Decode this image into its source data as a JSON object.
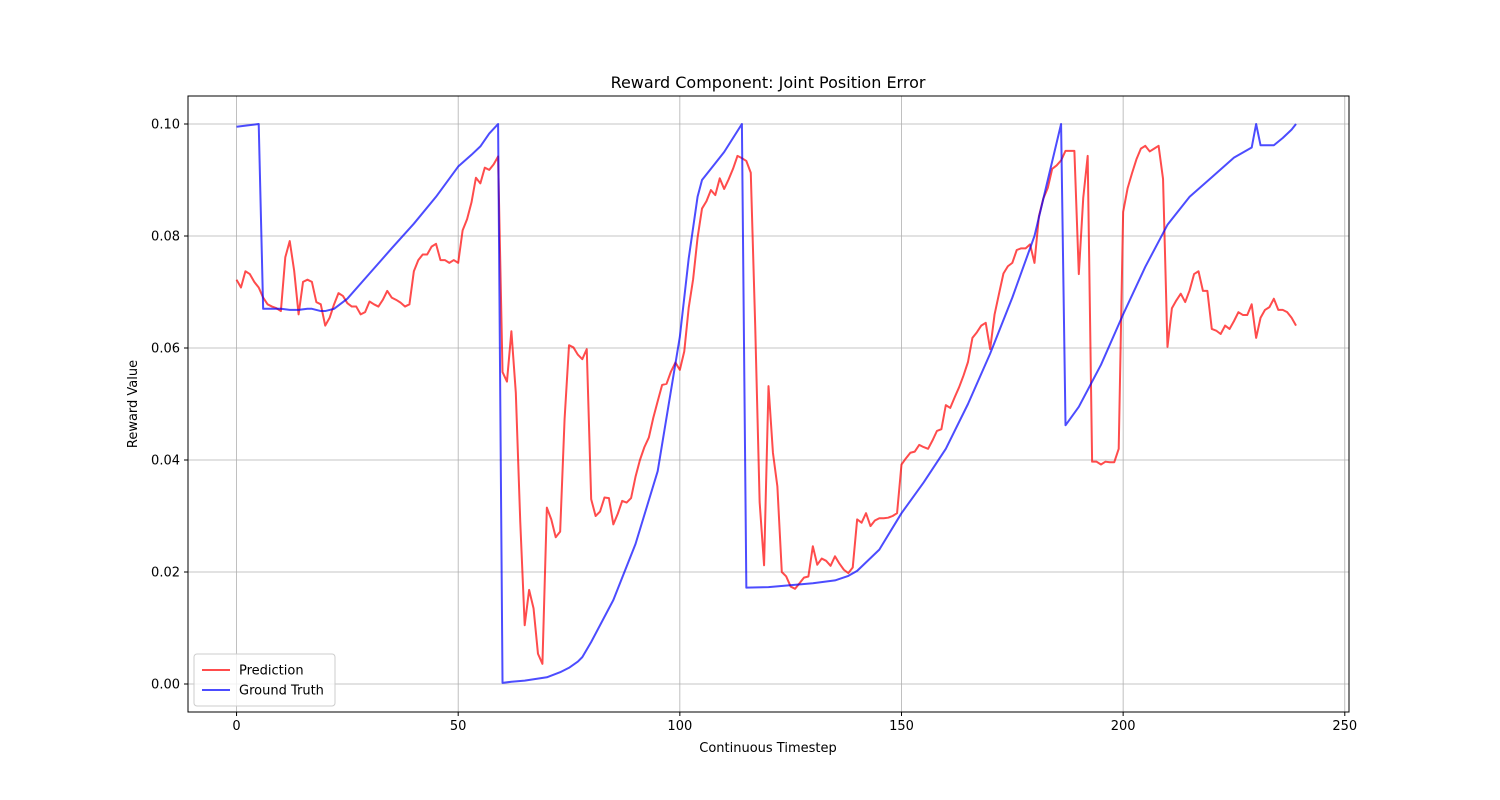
{
  "chart_data": {
    "type": "line",
    "title": "Reward Component: Joint Position Error",
    "xlabel": "Continuous Timestep",
    "ylabel": "Reward Value",
    "xlim": [
      -10.95,
      250.95
    ],
    "ylim": [
      -0.005,
      0.105
    ],
    "xticks": [
      0,
      50,
      100,
      150,
      200,
      250
    ],
    "yticks": [
      0.0,
      0.02,
      0.04,
      0.06,
      0.08,
      0.1
    ],
    "xtick_labels": [
      "0",
      "50",
      "100",
      "150",
      "200",
      "250"
    ],
    "ytick_labels": [
      "0.00",
      "0.02",
      "0.04",
      "0.06",
      "0.08",
      "0.10"
    ],
    "grid": true,
    "legend_position": "lower-left",
    "series": [
      {
        "name": "Prediction",
        "color": "#ff0000",
        "x": [
          0,
          1,
          2,
          3,
          4,
          5,
          6,
          7,
          8,
          9,
          10,
          11,
          12,
          13,
          14,
          15,
          16,
          17,
          18,
          19,
          20,
          21,
          22,
          23,
          24,
          25,
          26,
          27,
          28,
          29,
          30,
          31,
          32,
          33,
          34,
          35,
          36,
          37,
          38,
          39,
          40,
          41,
          42,
          43,
          44,
          45,
          46,
          47,
          48,
          49,
          50,
          51,
          52,
          53,
          54,
          55,
          56,
          57,
          58,
          59,
          60,
          61,
          62,
          63,
          64,
          65,
          66,
          67,
          68,
          69,
          70,
          71,
          72,
          73,
          74,
          75,
          76,
          77,
          78,
          79,
          80,
          81,
          82,
          83,
          84,
          85,
          86,
          87,
          88,
          89,
          90,
          91,
          92,
          93,
          94,
          95,
          96,
          97,
          98,
          99,
          100,
          101,
          102,
          103,
          104,
          105,
          106,
          107,
          108,
          109,
          110,
          111,
          112,
          113,
          114,
          115,
          116,
          117,
          118,
          119,
          120,
          121,
          122,
          123,
          124,
          125,
          126,
          127,
          128,
          129,
          130,
          131,
          132,
          133,
          134,
          135,
          136,
          137,
          138,
          139,
          140,
          141,
          142,
          143,
          144,
          145,
          146,
          147,
          148,
          149,
          150,
          151,
          152,
          153,
          154,
          155,
          156,
          157,
          158,
          159,
          160,
          161,
          162,
          163,
          164,
          165,
          166,
          167,
          168,
          169,
          170,
          171,
          172,
          173,
          174,
          175,
          176,
          177,
          178,
          179,
          180,
          181,
          182,
          183,
          184,
          185,
          186,
          187,
          188,
          189,
          190,
          191,
          192,
          193,
          194,
          195,
          196,
          197,
          198,
          199,
          200,
          201,
          202,
          203,
          204,
          205,
          206,
          207,
          208,
          209,
          210,
          211,
          212,
          213,
          214,
          215,
          216,
          217,
          218,
          219,
          220,
          221,
          222,
          223,
          224,
          225,
          226,
          227,
          228,
          229,
          230,
          231,
          232,
          233,
          234,
          235,
          236,
          237,
          238,
          239
        ],
        "y": [
          0.0722,
          0.0708,
          0.0737,
          0.0732,
          0.0718,
          0.0708,
          0.069,
          0.0678,
          0.0674,
          0.0671,
          0.0666,
          0.0762,
          0.0791,
          0.0738,
          0.066,
          0.0718,
          0.0722,
          0.0718,
          0.0682,
          0.0678,
          0.064,
          0.0654,
          0.0678,
          0.0698,
          0.0693,
          0.068,
          0.0674,
          0.0674,
          0.066,
          0.0664,
          0.0683,
          0.0678,
          0.0674,
          0.0686,
          0.0702,
          0.069,
          0.0686,
          0.0681,
          0.0674,
          0.0678,
          0.0737,
          0.0757,
          0.0767,
          0.0767,
          0.0781,
          0.0786,
          0.0757,
          0.0757,
          0.0752,
          0.0757,
          0.0752,
          0.081,
          0.083,
          0.086,
          0.0904,
          0.0894,
          0.0922,
          0.0918,
          0.0928,
          0.0942,
          0.0557,
          0.054,
          0.063,
          0.052,
          0.029,
          0.0105,
          0.0168,
          0.0135,
          0.0054,
          0.0036,
          0.0315,
          0.0294,
          0.0262,
          0.0272,
          0.0473,
          0.0605,
          0.0601,
          0.0588,
          0.058,
          0.0598,
          0.033,
          0.03,
          0.0308,
          0.0333,
          0.0332,
          0.0285,
          0.0304,
          0.0327,
          0.0324,
          0.0332,
          0.037,
          0.04,
          0.0423,
          0.044,
          0.0475,
          0.0505,
          0.0534,
          0.0536,
          0.0558,
          0.0574,
          0.0561,
          0.0594,
          0.0672,
          0.0723,
          0.0797,
          0.0849,
          0.0862,
          0.0882,
          0.0873,
          0.0903,
          0.0884,
          0.0901,
          0.092,
          0.0943,
          0.0939,
          0.0934,
          0.0913,
          0.064,
          0.0325,
          0.0212,
          0.0532,
          0.0413,
          0.0353,
          0.02,
          0.0192,
          0.0174,
          0.017,
          0.018,
          0.019,
          0.0192,
          0.0246,
          0.0213,
          0.0224,
          0.022,
          0.0211,
          0.0228,
          0.0215,
          0.0204,
          0.0198,
          0.0208,
          0.0294,
          0.0288,
          0.0305,
          0.0282,
          0.0292,
          0.0296,
          0.0296,
          0.0297,
          0.03,
          0.0305,
          0.0392,
          0.0403,
          0.0413,
          0.0415,
          0.0427,
          0.0423,
          0.042,
          0.0435,
          0.0452,
          0.0455,
          0.0498,
          0.0493,
          0.0512,
          0.053,
          0.0551,
          0.0575,
          0.0618,
          0.0628,
          0.064,
          0.0645,
          0.0598,
          0.066,
          0.0697,
          0.0733,
          0.0746,
          0.0752,
          0.0775,
          0.0778,
          0.0778,
          0.0785,
          0.0752,
          0.0835,
          0.0867,
          0.0886,
          0.092,
          0.0926,
          0.0935,
          0.0952,
          0.0952,
          0.0952,
          0.0732,
          0.0868,
          0.0943,
          0.0397,
          0.0397,
          0.0392,
          0.0397,
          0.0396,
          0.0396,
          0.042,
          0.0843,
          0.0885,
          0.0912,
          0.0937,
          0.0956,
          0.0961,
          0.0951,
          0.0956,
          0.0961,
          0.0902,
          0.0602,
          0.0671,
          0.0685,
          0.0697,
          0.0682,
          0.0703,
          0.0732,
          0.0737,
          0.0702,
          0.0702,
          0.0634,
          0.0631,
          0.0625,
          0.064,
          0.0634,
          0.0648,
          0.0664,
          0.0659,
          0.0659,
          0.0678,
          0.0618,
          0.0654,
          0.0668,
          0.0673,
          0.0688,
          0.0668,
          0.0668,
          0.0664,
          0.0654,
          0.064
        ]
      },
      {
        "name": "Ground Truth",
        "color": "#0000ff",
        "x": [
          0,
          5,
          6,
          8,
          10,
          12,
          14,
          16,
          17,
          18,
          19,
          20,
          22,
          25,
          30,
          35,
          40,
          45,
          50,
          53,
          55,
          57,
          59,
          60,
          62,
          65,
          70,
          73,
          75,
          77,
          78,
          80,
          85,
          90,
          95,
          100,
          102,
          104,
          105,
          108,
          110,
          114,
          115,
          120,
          130,
          135,
          138,
          140,
          145,
          150,
          155,
          160,
          165,
          170,
          175,
          180,
          186,
          187,
          190,
          195,
          200,
          205,
          210,
          215,
          220,
          225,
          229,
          230,
          231,
          232,
          234,
          236,
          238,
          239
        ],
        "y": [
          0.0995,
          0.1,
          0.067,
          0.067,
          0.067,
          0.0668,
          0.0668,
          0.067,
          0.067,
          0.0668,
          0.0666,
          0.0666,
          0.067,
          0.0688,
          0.0733,
          0.0778,
          0.0822,
          0.087,
          0.0924,
          0.0945,
          0.096,
          0.0983,
          0.1,
          0.0002,
          0.0004,
          0.0006,
          0.0012,
          0.0021,
          0.0029,
          0.004,
          0.0048,
          0.0075,
          0.015,
          0.025,
          0.038,
          0.062,
          0.076,
          0.087,
          0.09,
          0.093,
          0.095,
          0.1,
          0.0172,
          0.0173,
          0.018,
          0.0185,
          0.0193,
          0.0202,
          0.024,
          0.0305,
          0.036,
          0.042,
          0.05,
          0.059,
          0.069,
          0.08,
          0.1,
          0.0462,
          0.0495,
          0.057,
          0.066,
          0.0745,
          0.082,
          0.087,
          0.0905,
          0.094,
          0.0958,
          0.1,
          0.0962,
          0.0962,
          0.0962,
          0.0975,
          0.099,
          0.1
        ]
      }
    ]
  }
}
